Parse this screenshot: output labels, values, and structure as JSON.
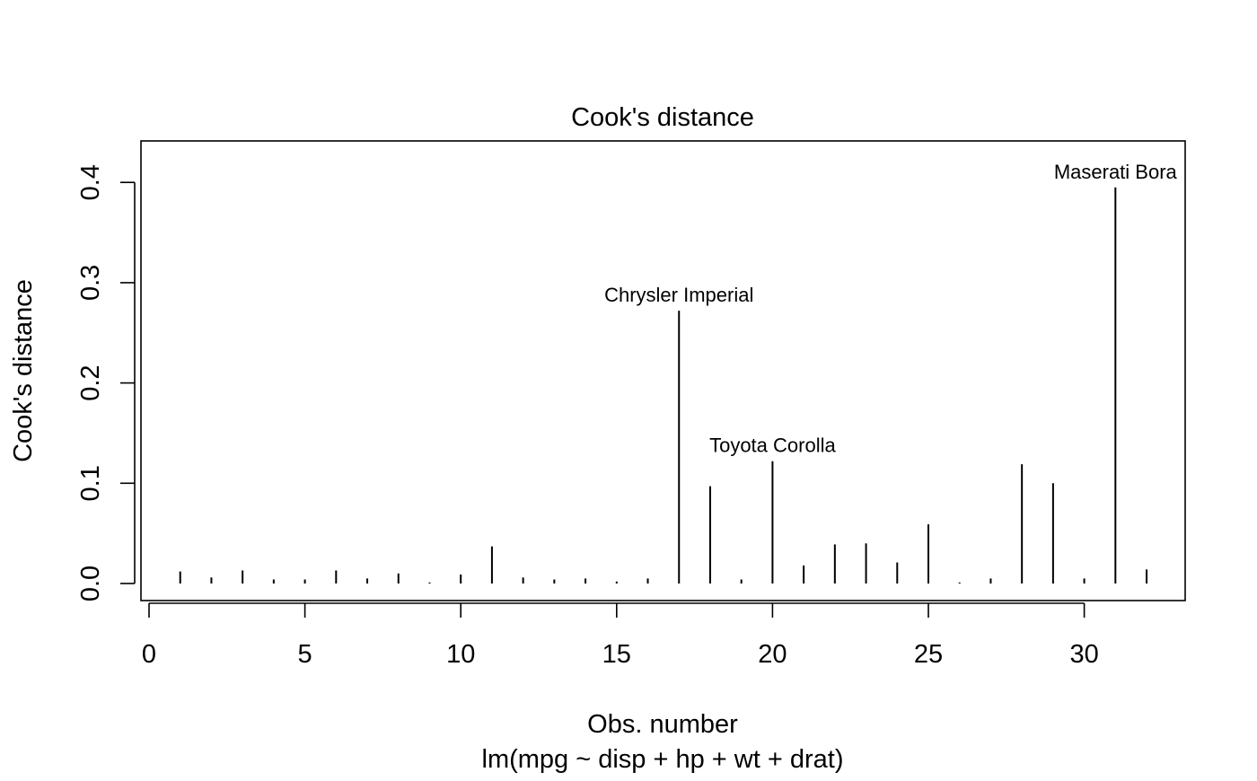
{
  "chart_data": {
    "type": "bar",
    "subtype": "spike",
    "title": "Cook's distance",
    "xlabel": "Obs. number",
    "subtitle": "lm(mpg ~ disp + hp + wt + drat)",
    "ylabel": "Cook's distance",
    "xlim": [
      0,
      33
    ],
    "ylim": [
      0,
      0.43
    ],
    "x_ticks": [
      0,
      5,
      10,
      15,
      20,
      25,
      30
    ],
    "y_ticks": [
      0.0,
      0.1,
      0.2,
      0.3,
      0.4
    ],
    "y_tick_labels": [
      "0.0",
      "0.1",
      "0.2",
      "0.3",
      "0.4"
    ],
    "grid": false,
    "x": [
      1,
      2,
      3,
      4,
      5,
      6,
      7,
      8,
      9,
      10,
      11,
      12,
      13,
      14,
      15,
      16,
      17,
      18,
      19,
      20,
      21,
      22,
      23,
      24,
      25,
      26,
      27,
      28,
      29,
      30,
      31,
      32
    ],
    "values": [
      0.012,
      0.006,
      0.013,
      0.004,
      0.004,
      0.013,
      0.005,
      0.01,
      0.001,
      0.009,
      0.037,
      0.006,
      0.004,
      0.005,
      0.002,
      0.005,
      0.272,
      0.097,
      0.004,
      0.122,
      0.018,
      0.039,
      0.04,
      0.021,
      0.059,
      0.001,
      0.005,
      0.119,
      0.1,
      0.005,
      0.395,
      0.014
    ],
    "annotations": [
      {
        "x": 17,
        "label": "Chrysler Imperial"
      },
      {
        "x": 20,
        "label": "Toyota Corolla"
      },
      {
        "x": 31,
        "label": "Maserati Bora"
      }
    ]
  }
}
